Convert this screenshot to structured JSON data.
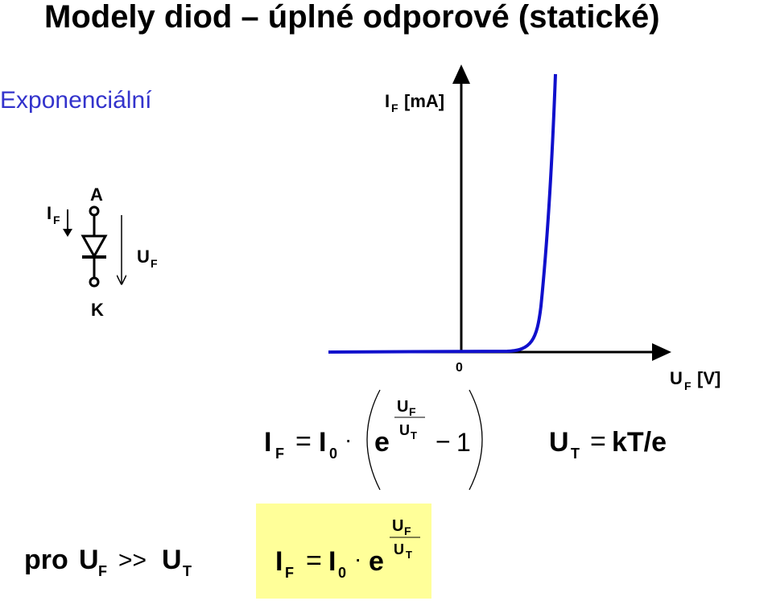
{
  "title": "Modely diod – úplné odporové (statické)",
  "subtitle": "Exponenciální",
  "graph": {
    "y_label": {
      "symbol": "I",
      "subscript": "F",
      "unit": "[mA]"
    },
    "x_label": {
      "symbol": "U",
      "subscript": "F",
      "unit": "[V]"
    },
    "origin": "0"
  },
  "diode": {
    "current": {
      "symbol": "I",
      "subscript": "F"
    },
    "anode": "A",
    "cathode": "K",
    "voltage": {
      "symbol": "U",
      "subscript": "F"
    }
  },
  "formula_full": {
    "lhs": "I",
    "lhs_sub": "F",
    "eq": "=",
    "i0": "I",
    "i0_sub": "0",
    "dot": "·",
    "base": "e",
    "exp_num": "U",
    "exp_num_sub": "F",
    "exp_den": "U",
    "exp_den_sub": "T",
    "minus": "−",
    "one": "1"
  },
  "thermal_voltage": {
    "symbol": "U",
    "sub": "T",
    "eq": "=",
    "rhs": "kT/e"
  },
  "condition": {
    "word": "pro",
    "lhs": "U",
    "lhs_sub": "F",
    "op": ">>",
    "rhs": "U",
    "rhs_sub": "T"
  },
  "formula_approx": {
    "lhs": "I",
    "lhs_sub": "F",
    "eq": "=",
    "i0": "I",
    "i0_sub": "0",
    "dot": "·",
    "base": "e",
    "exp_num": "U",
    "exp_num_sub": "F",
    "exp_den": "U",
    "exp_den_sub": "T"
  }
}
